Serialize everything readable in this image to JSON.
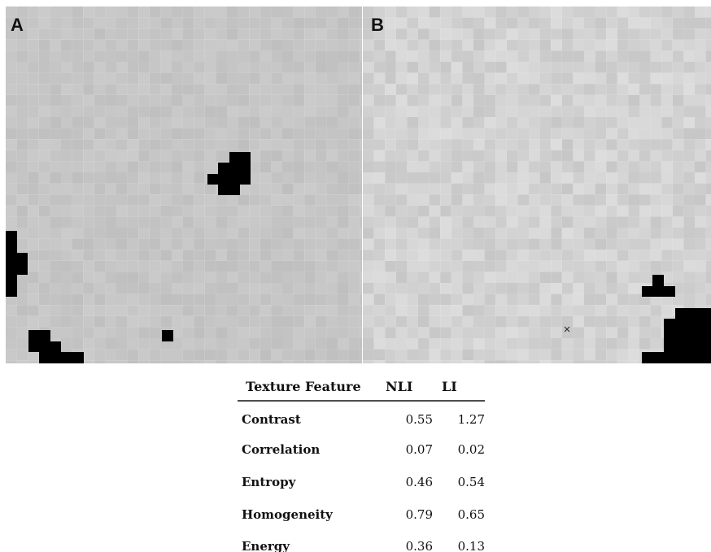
{
  "panels": [
    {
      "label": "A"
    },
    {
      "label": "B"
    }
  ],
  "table": {
    "header": [
      "Texture Feature",
      "NLI",
      "LI"
    ],
    "rows": [
      [
        "Contrast",
        "0.55",
        "1.27"
      ],
      [
        "Correlation",
        "0.07",
        "0.02"
      ],
      [
        "Entropy",
        "0.46",
        "0.54"
      ],
      [
        "Homogeneity",
        "0.79",
        "0.65"
      ],
      [
        "Energy",
        "0.36",
        "0.13"
      ]
    ]
  }
}
